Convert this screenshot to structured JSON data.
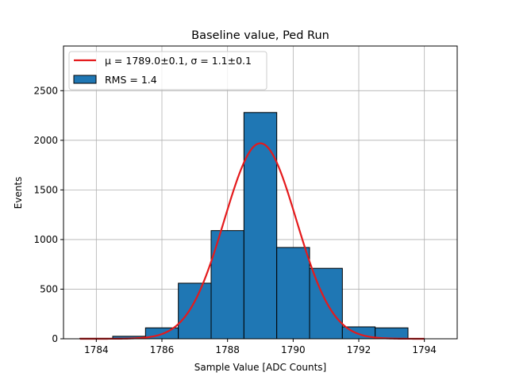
{
  "chart_data": {
    "type": "bar",
    "title": "Baseline value, Ped Run",
    "xlabel": "Sample Value [ADC Counts]",
    "ylabel": "Events",
    "xlim": [
      1783.0,
      1795.0
    ],
    "ylim": [
      0,
      2950
    ],
    "grid": true,
    "legend_placement": "top-left",
    "xticks": [
      1784,
      1786,
      1788,
      1790,
      1792,
      1794
    ],
    "yticks": [
      0,
      500,
      1000,
      1500,
      2000,
      2500
    ],
    "histogram": {
      "name": "RMS = 1.4",
      "color": "#1f77b4",
      "edgecolor": "#000000",
      "bins": [
        {
          "x0": 1783.5,
          "x1": 1784.5,
          "value": 5
        },
        {
          "x0": 1784.5,
          "x1": 1785.5,
          "value": 25
        },
        {
          "x0": 1785.5,
          "x1": 1786.5,
          "value": 110
        },
        {
          "x0": 1786.5,
          "x1": 1787.5,
          "value": 560
        },
        {
          "x0": 1787.5,
          "x1": 1788.5,
          "value": 1090
        },
        {
          "x0": 1788.5,
          "x1": 1789.5,
          "value": 2280
        },
        {
          "x0": 1789.5,
          "x1": 1790.5,
          "value": 920
        },
        {
          "x0": 1790.5,
          "x1": 1791.5,
          "value": 710
        },
        {
          "x0": 1791.5,
          "x1": 1792.5,
          "value": 120
        },
        {
          "x0": 1792.5,
          "x1": 1793.5,
          "value": 110
        }
      ]
    },
    "fit": {
      "name": "$\\mu = 1789.0 \\pm 0.1$, $\\sigma = 1.1 \\pm 0.1$",
      "legend_label": "μ = 1789.0±0.1, σ = 1.1±0.1",
      "type": "gaussian",
      "mu": 1789.0,
      "sigma": 1.1,
      "amplitude": 1970,
      "x_range": [
        1783.5,
        1794.0
      ],
      "color": "#e41a1c"
    }
  }
}
